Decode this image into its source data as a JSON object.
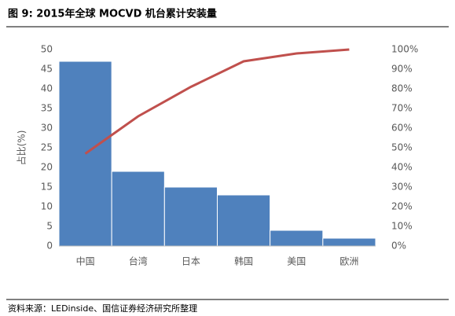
{
  "chart_data": {
    "type": "pareto",
    "title": "图 9: 2015年全球 MOCVD 机台累计安装量",
    "ylabel": "占比(%)",
    "source": "资料来源：LEDinside、国信证券经济研究所整理",
    "categories": [
      "中国",
      "台湾",
      "日本",
      "韩国",
      "美国",
      "欧洲"
    ],
    "series": [
      {
        "type": "bar",
        "color": "#4f81bd",
        "values": [
          47,
          19,
          15,
          13,
          4,
          2
        ]
      },
      {
        "type": "line",
        "color": "#c0504d",
        "axis": "y2",
        "values": [
          47,
          66,
          81,
          94,
          98,
          100
        ]
      }
    ],
    "ylim": [
      0,
      50
    ],
    "yticks": [
      0,
      5,
      10,
      15,
      20,
      25,
      30,
      35,
      40,
      45,
      50
    ],
    "y2lim": [
      0,
      100
    ],
    "y2ticks": [
      {
        "value": 0,
        "label": "0%"
      },
      {
        "value": 10,
        "label": "10%"
      },
      {
        "value": 20,
        "label": "20%"
      },
      {
        "value": 30,
        "label": "30%"
      },
      {
        "value": 40,
        "label": "40%"
      },
      {
        "value": 50,
        "label": "50%"
      },
      {
        "value": 60,
        "label": "60%"
      },
      {
        "value": 70,
        "label": "70%"
      },
      {
        "value": 80,
        "label": "80%"
      },
      {
        "value": 90,
        "label": "90%"
      },
      {
        "value": 100,
        "label": "100%"
      }
    ]
  }
}
